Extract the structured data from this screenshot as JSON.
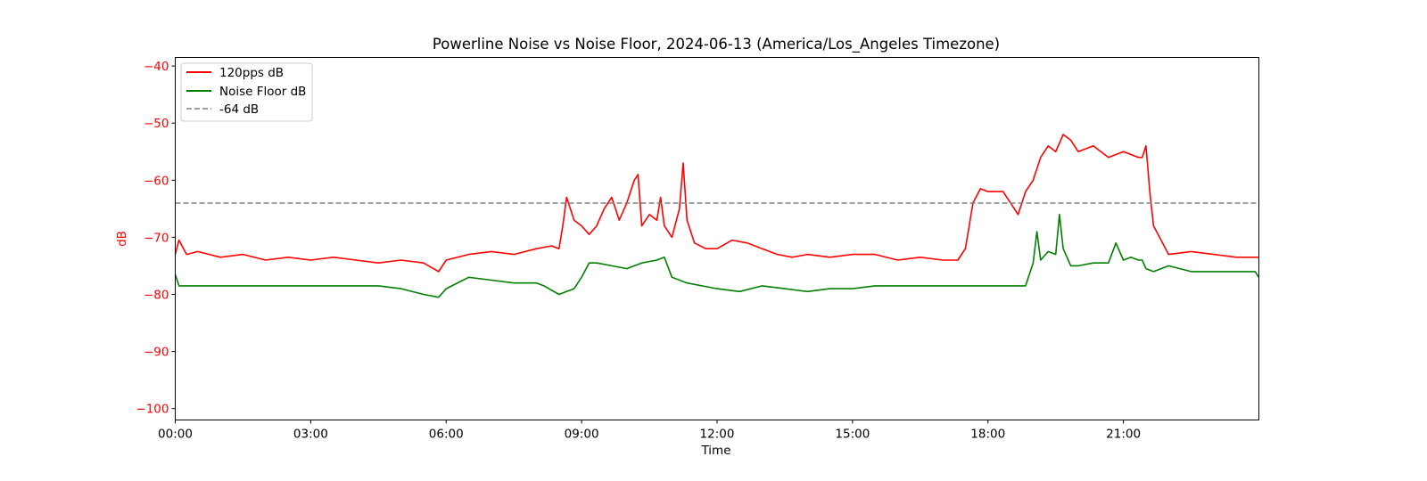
{
  "chart_data": {
    "type": "line",
    "title": "Powerline Noise vs Noise Floor, 2024-06-13 (America/Los_Angeles Timezone)",
    "xlabel": "Time",
    "ylabel": "dB",
    "xlim": [
      "00:00",
      "24:00"
    ],
    "ylim": [
      -102,
      -38.5
    ],
    "x_ticks": [
      "00:00",
      "03:00",
      "06:00",
      "09:00",
      "12:00",
      "15:00",
      "18:00",
      "21:00"
    ],
    "y_ticks": [
      -40,
      -50,
      -60,
      -70,
      -80,
      -90,
      -100
    ],
    "grid": false,
    "legend_position": "top-left",
    "colors": {
      "signal": "#ff0000",
      "floor": "#008000",
      "threshold": "#808080",
      "ylabel": "#ff0000"
    },
    "threshold": {
      "name": "-64 dB",
      "value": -64,
      "style": "dashed"
    },
    "series": [
      {
        "name": "120pps dB",
        "color": "#ff0000",
        "x": [
          "00:00",
          "00:05",
          "00:15",
          "00:30",
          "01:00",
          "01:30",
          "02:00",
          "02:30",
          "03:00",
          "03:30",
          "04:00",
          "04:30",
          "05:00",
          "05:30",
          "05:50",
          "06:00",
          "06:30",
          "07:00",
          "07:30",
          "08:00",
          "08:20",
          "08:30",
          "08:35",
          "08:40",
          "08:50",
          "09:00",
          "09:10",
          "09:20",
          "09:30",
          "09:40",
          "09:50",
          "10:00",
          "10:10",
          "10:15",
          "10:20",
          "10:30",
          "10:40",
          "10:45",
          "10:50",
          "11:00",
          "11:10",
          "11:15",
          "11:20",
          "11:30",
          "11:45",
          "12:00",
          "12:20",
          "12:40",
          "13:00",
          "13:20",
          "13:40",
          "14:00",
          "14:30",
          "15:00",
          "15:30",
          "16:00",
          "16:30",
          "17:00",
          "17:20",
          "17:30",
          "17:35",
          "17:40",
          "17:50",
          "18:00",
          "18:20",
          "18:30",
          "18:40",
          "18:50",
          "19:00",
          "19:10",
          "19:20",
          "19:30",
          "19:40",
          "19:50",
          "20:00",
          "20:20",
          "20:40",
          "21:00",
          "21:20",
          "21:25",
          "21:30",
          "21:35",
          "21:40",
          "22:00",
          "22:30",
          "23:00",
          "23:30",
          "24:00"
        ],
        "y": [
          -73,
          -70.5,
          -73,
          -72.5,
          -73.5,
          -73,
          -74,
          -73.5,
          -74,
          -73.5,
          -74,
          -74.5,
          -74,
          -74.5,
          -76,
          -74,
          -73,
          -72.5,
          -73,
          -72,
          -71.5,
          -72,
          -68,
          -63,
          -67,
          -68,
          -69.5,
          -68,
          -65,
          -63,
          -67,
          -64,
          -60,
          -59,
          -68,
          -66,
          -67,
          -63,
          -68,
          -70,
          -65,
          -57,
          -67,
          -71,
          -72,
          -72,
          -70.5,
          -71,
          -72,
          -73,
          -73.5,
          -73,
          -73.5,
          -73,
          -73,
          -74,
          -73.5,
          -74,
          -74,
          -72,
          -68,
          -64,
          -61.5,
          -62,
          -62,
          -64,
          -66,
          -62,
          -60,
          -56,
          -54,
          -55,
          -52,
          -53,
          -55,
          -54,
          -56,
          -55,
          -56,
          -56,
          -54,
          -62,
          -68,
          -73,
          -72.5,
          -73,
          -73.5,
          -73.5
        ]
      },
      {
        "name": "Noise Floor dB",
        "color": "#008000",
        "x": [
          "00:00",
          "00:05",
          "00:30",
          "01:00",
          "01:30",
          "02:00",
          "02:30",
          "03:00",
          "03:30",
          "04:00",
          "04:30",
          "05:00",
          "05:30",
          "05:50",
          "06:00",
          "06:30",
          "07:00",
          "07:30",
          "08:00",
          "08:10",
          "08:30",
          "08:50",
          "09:00",
          "09:10",
          "09:20",
          "09:40",
          "10:00",
          "10:20",
          "10:40",
          "10:50",
          "11:00",
          "11:20",
          "11:40",
          "12:00",
          "12:30",
          "13:00",
          "13:30",
          "14:00",
          "14:30",
          "15:00",
          "15:30",
          "16:00",
          "16:30",
          "17:00",
          "17:30",
          "18:00",
          "18:30",
          "18:50",
          "19:00",
          "19:05",
          "19:10",
          "19:20",
          "19:30",
          "19:35",
          "19:40",
          "19:50",
          "20:00",
          "20:20",
          "20:40",
          "20:50",
          "21:00",
          "21:10",
          "21:20",
          "21:25",
          "21:30",
          "21:40",
          "22:00",
          "22:30",
          "23:00",
          "23:30",
          "23:55",
          "24:00"
        ],
        "y": [
          -76.5,
          -78.5,
          -78.5,
          -78.5,
          -78.5,
          -78.5,
          -78.5,
          -78.5,
          -78.5,
          -78.5,
          -78.5,
          -79,
          -80,
          -80.5,
          -79,
          -77,
          -77.5,
          -78,
          -78,
          -78.5,
          -80,
          -79,
          -77,
          -74.5,
          -74.5,
          -75,
          -75.5,
          -74.5,
          -74,
          -73.5,
          -77,
          -78,
          -78.5,
          -79,
          -79.5,
          -78.5,
          -79,
          -79.5,
          -79,
          -79,
          -78.5,
          -78.5,
          -78.5,
          -78.5,
          -78.5,
          -78.5,
          -78.5,
          -78.5,
          -74.5,
          -69,
          -74,
          -72.5,
          -73,
          -66,
          -72,
          -75,
          -75,
          -74.5,
          -74.5,
          -71,
          -74,
          -73.5,
          -74,
          -74,
          -75.5,
          -76,
          -75,
          -76,
          -76,
          -76,
          -76,
          -77
        ]
      }
    ]
  }
}
